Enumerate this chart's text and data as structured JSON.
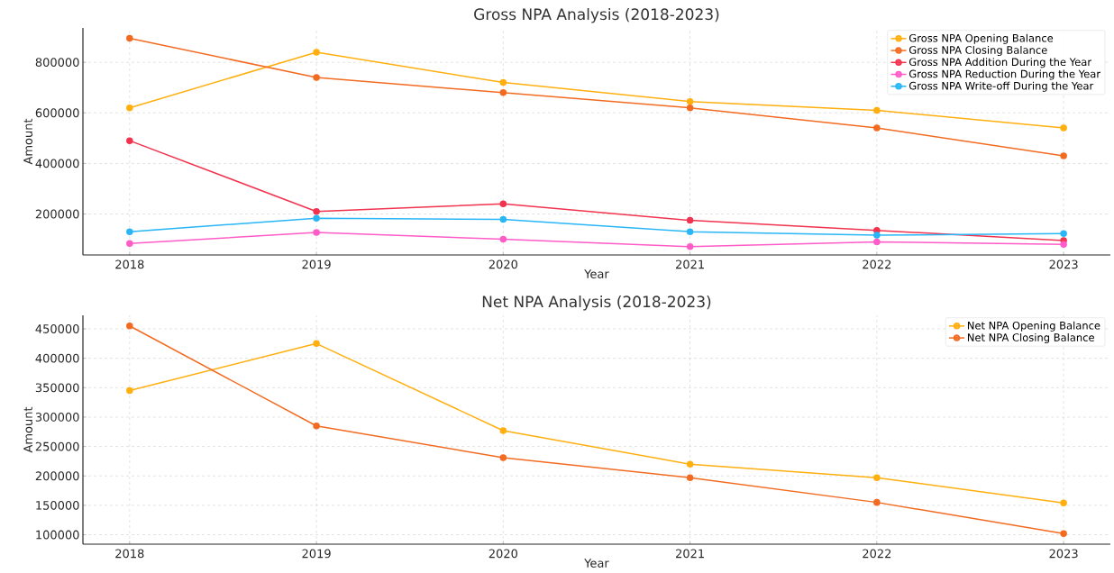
{
  "chart_data": [
    {
      "type": "line",
      "title": "Gross NPA Analysis (2018-2023)",
      "xlabel": "Year",
      "ylabel": "Amount",
      "x": [
        2018,
        2019,
        2020,
        2021,
        2022,
        2023
      ],
      "xlim": [
        2017.75,
        2023.25
      ],
      "xticks": [
        2018,
        2019,
        2020,
        2021,
        2022,
        2023
      ],
      "ylim": [
        38000,
        936000
      ],
      "yticks": [
        200000,
        400000,
        600000,
        800000
      ],
      "grid": true,
      "legend": "top right",
      "marker": "circle",
      "line_style": "solid",
      "series": [
        {
          "name": "Gross NPA Opening Balance",
          "color": "#ffaf0f",
          "values": [
            620000,
            840000,
            720000,
            645000,
            610000,
            540000
          ]
        },
        {
          "name": "Gross NPA Closing Balance",
          "color": "#f26b21",
          "values": [
            895000,
            740000,
            680000,
            620000,
            540000,
            430000
          ]
        },
        {
          "name": "Gross NPA Addition During the Year",
          "color": "#f2334f",
          "values": [
            490000,
            210000,
            240000,
            175000,
            135000,
            95000
          ]
        },
        {
          "name": "Gross NPA Reduction During the Year",
          "color": "#ff5cc8",
          "values": [
            83000,
            127000,
            100000,
            71000,
            90000,
            80000
          ]
        },
        {
          "name": "Gross NPA Write-off During the Year",
          "color": "#29b6f6",
          "values": [
            130000,
            183000,
            179000,
            130000,
            116000,
            123000
          ]
        }
      ]
    },
    {
      "type": "line",
      "title": "Net NPA Analysis (2018-2023)",
      "xlabel": "Year",
      "ylabel": "Amount",
      "x": [
        2018,
        2019,
        2020,
        2021,
        2022,
        2023
      ],
      "xlim": [
        2017.75,
        2023.25
      ],
      "xticks": [
        2018,
        2019,
        2020,
        2021,
        2022,
        2023
      ],
      "ylim": [
        84000,
        473000
      ],
      "yticks": [
        100000,
        150000,
        200000,
        250000,
        300000,
        350000,
        400000,
        450000
      ],
      "grid": true,
      "legend": "top right",
      "marker": "circle",
      "line_style": "solid",
      "series": [
        {
          "name": "Net NPA Opening Balance",
          "color": "#ffaf0f",
          "values": [
            345000,
            425000,
            277000,
            220000,
            197000,
            154000
          ]
        },
        {
          "name": "Net NPA Closing Balance",
          "color": "#f26b21",
          "values": [
            455000,
            285000,
            231000,
            197000,
            155000,
            102000
          ]
        }
      ]
    }
  ]
}
